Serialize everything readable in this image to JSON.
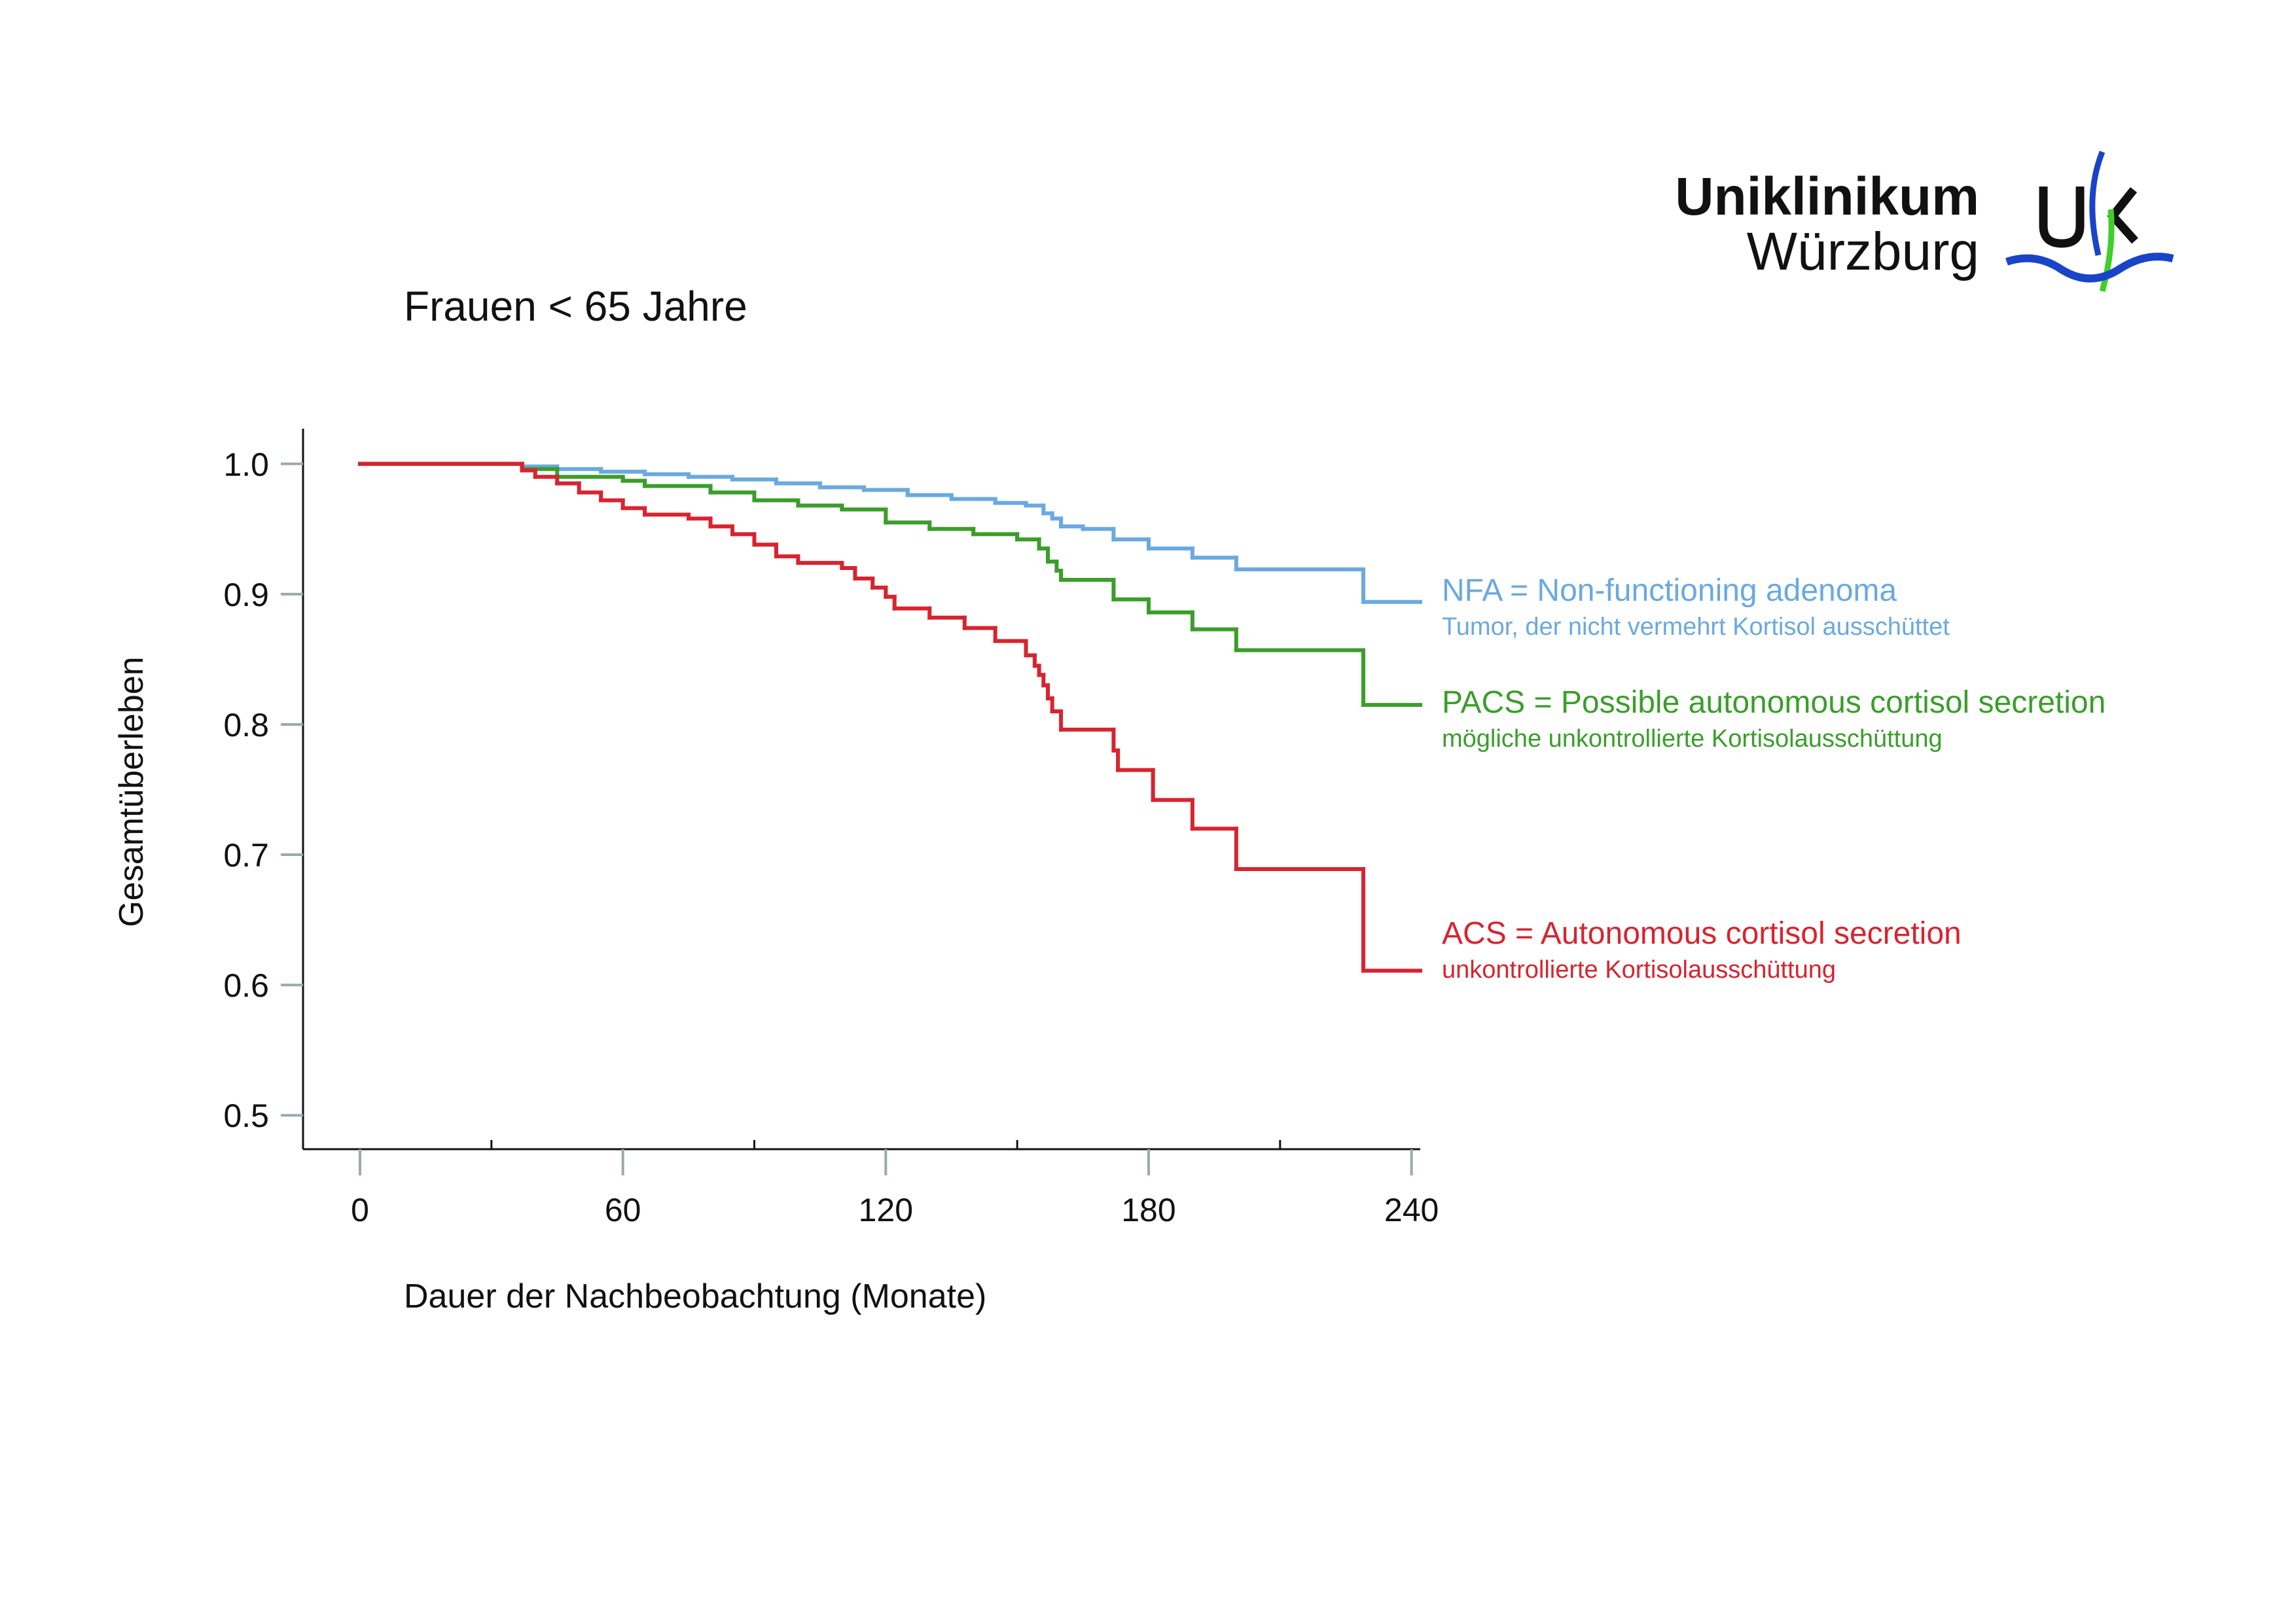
{
  "logo": {
    "line1": "Uniklinikum",
    "line2": "Würzburg"
  },
  "chart_data": {
    "type": "step",
    "title": "Frauen < 65 Jahre",
    "xlabel": "Dauer der Nachbeobachtung (Monate)",
    "ylabel": "Gesamtüberleben",
    "xlim": [
      -13,
      242
    ],
    "ylim": [
      0.474,
      1.027
    ],
    "xticks": [
      0,
      60,
      120,
      180,
      240
    ],
    "xminorticks": [
      30,
      90,
      150,
      210
    ],
    "yticks": [
      {
        "value": 1,
        "label": "1.0"
      },
      0.9,
      0.8,
      0.7,
      0.6,
      0.5
    ],
    "series": [
      {
        "name": "NFA = Non-functioning adenoma",
        "description": "Tumor, der nicht vermehrt Kortisol ausschüttet",
        "color": "#6aa9e0",
        "x": [
          0,
          37,
          45,
          55,
          65,
          75,
          85,
          95,
          105,
          115,
          125,
          135,
          145,
          152,
          156,
          158,
          160,
          165,
          172,
          180,
          190,
          200,
          229
        ],
        "values": [
          1.0,
          0.998,
          0.996,
          0.994,
          0.992,
          0.99,
          0.988,
          0.985,
          0.982,
          0.98,
          0.976,
          0.973,
          0.97,
          0.968,
          0.962,
          0.958,
          0.952,
          0.95,
          0.942,
          0.935,
          0.928,
          0.919,
          0.894
        ]
      },
      {
        "name": "PACS = Possible autonomous cortisol secretion",
        "description": "mögliche unkontrollierte Kortisolausschüttung",
        "color": "#3a9e2a",
        "x": [
          0,
          37,
          45,
          60,
          65,
          80,
          90,
          100,
          110,
          120,
          130,
          140,
          150,
          155,
          157,
          159,
          160,
          172,
          180,
          190,
          200,
          229
        ],
        "values": [
          1.0,
          0.996,
          0.99,
          0.987,
          0.983,
          0.978,
          0.972,
          0.968,
          0.965,
          0.955,
          0.95,
          0.946,
          0.942,
          0.935,
          0.925,
          0.918,
          0.911,
          0.896,
          0.886,
          0.873,
          0.857,
          0.815
        ]
      },
      {
        "name": "ACS = Autonomous cortisol secretion",
        "description": "unkontrollierte Kortisolausschüttung",
        "color": "#d7242f",
        "x": [
          0,
          37,
          40,
          45,
          50,
          55,
          60,
          65,
          75,
          80,
          85,
          90,
          95,
          100,
          110,
          113,
          117,
          120,
          122,
          130,
          138,
          145,
          152,
          154,
          155,
          156,
          157,
          158,
          160,
          172,
          173,
          181,
          190,
          200,
          229
        ],
        "values": [
          1.0,
          0.995,
          0.99,
          0.985,
          0.978,
          0.972,
          0.966,
          0.961,
          0.958,
          0.952,
          0.946,
          0.938,
          0.929,
          0.924,
          0.92,
          0.912,
          0.905,
          0.898,
          0.889,
          0.882,
          0.874,
          0.864,
          0.853,
          0.845,
          0.838,
          0.83,
          0.82,
          0.81,
          0.796,
          0.78,
          0.765,
          0.742,
          0.72,
          0.689,
          0.611
        ]
      }
    ]
  }
}
